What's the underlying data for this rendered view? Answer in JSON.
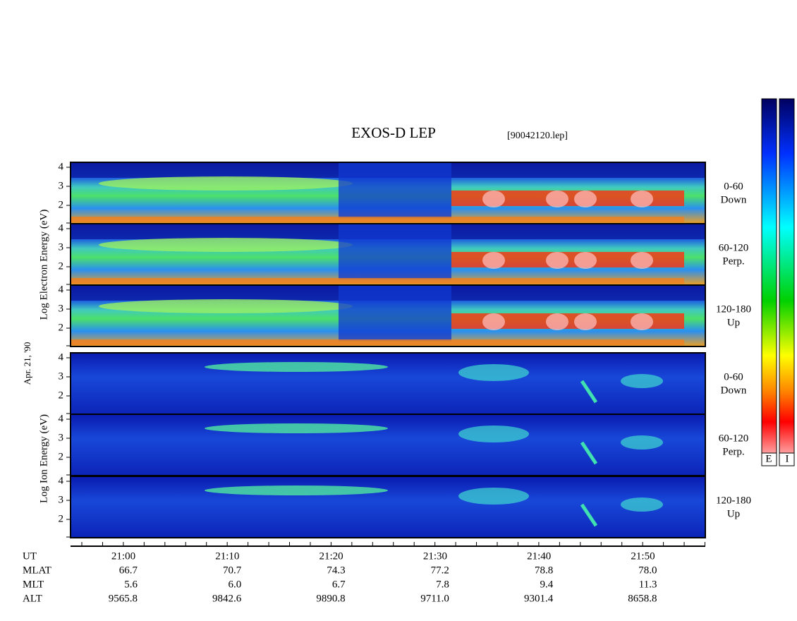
{
  "title": "EXOS-D LEP",
  "file": "[90042120.lep]",
  "axis_labels": {
    "electron": "Log  Electron  Energy (eV)",
    "date": "Apr. 21, '90",
    "ion": "Log  Ion  Energy (eV)"
  },
  "panels": [
    {
      "species": "electron",
      "angle": "0-60",
      "direction": "Down",
      "yticks": [
        4,
        3,
        2
      ]
    },
    {
      "species": "electron",
      "angle": "60-120",
      "direction": "Perp.",
      "yticks": [
        4,
        3,
        2
      ]
    },
    {
      "species": "electron",
      "angle": "120-180",
      "direction": "Up",
      "yticks": [
        4,
        3,
        2
      ]
    },
    {
      "species": "ion",
      "angle": "0-60",
      "direction": "Down",
      "yticks": [
        4,
        3,
        2
      ]
    },
    {
      "species": "ion",
      "angle": "60-120",
      "direction": "Perp.",
      "yticks": [
        4,
        3,
        2
      ]
    },
    {
      "species": "ion",
      "angle": "120-180",
      "direction": "Up",
      "yticks": [
        4,
        3,
        2
      ]
    }
  ],
  "table": {
    "rows": [
      {
        "label": "UT",
        "values": [
          "21:00",
          "21:10",
          "21:20",
          "21:30",
          "21:40",
          "21:50"
        ]
      },
      {
        "label": "MLAT",
        "values": [
          "66.7",
          "70.7",
          "74.3",
          "77.2",
          "78.8",
          "78.0"
        ]
      },
      {
        "label": "MLT",
        "values": [
          "5.6",
          "6.0",
          "6.7",
          "7.8",
          "9.4",
          "11.3"
        ]
      },
      {
        "label": "ALT",
        "values": [
          "9565.8",
          "9842.6",
          "9890.8",
          "9711.0",
          "9301.4",
          "8658.8"
        ]
      }
    ]
  },
  "colorbars": [
    "E",
    "I"
  ]
}
